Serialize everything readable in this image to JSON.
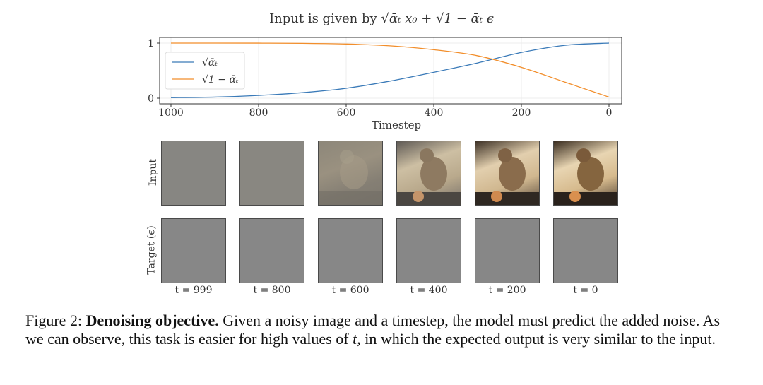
{
  "figure": {
    "chart_title_prefix": "Input is given by",
    "chart_title_formula": "√ᾱₜ x₀ + √1 − ᾱₜ ϵ",
    "row_labels": [
      "Input",
      "Target (ϵ)"
    ],
    "timestep_labels": [
      "t = 999",
      "t = 800",
      "t = 600",
      "t = 400",
      "t = 200",
      "t = 0"
    ]
  },
  "caption": {
    "label": "Figure 2:",
    "bold_title": "Denoising objective.",
    "text_before_t": "Given a noisy image and a timestep, the model must predict the added noise. As we can observe, this task is easier for high values of",
    "t_symbol": "t",
    "text_after_t": ", in which the expected output is very similar to the input."
  },
  "chart_data": {
    "type": "line",
    "title": "Input is given by √ᾱₜ x₀ + √1 − ᾱₜ ϵ",
    "xlabel": "Timestep",
    "ylabel": "",
    "xlim": [
      1000,
      0
    ],
    "ylim": [
      0,
      1
    ],
    "xticks": [
      1000,
      800,
      600,
      400,
      200,
      0
    ],
    "yticks": [
      0,
      1
    ],
    "legend_position": "top-left",
    "series": [
      {
        "name": "√ᾱₜ",
        "color": "#3a7ab8",
        "x": [
          1000,
          900,
          800,
          700,
          600,
          500,
          400,
          300,
          200,
          100,
          0
        ],
        "y": [
          0.01,
          0.02,
          0.05,
          0.1,
          0.18,
          0.31,
          0.47,
          0.64,
          0.83,
          0.96,
          1.0
        ]
      },
      {
        "name": "√1 − ᾱₜ",
        "color": "#f28e2b",
        "x": [
          1000,
          900,
          800,
          700,
          600,
          500,
          400,
          300,
          200,
          100,
          0
        ],
        "y": [
          1.0,
          1.0,
          0.999,
          0.995,
          0.983,
          0.95,
          0.88,
          0.77,
          0.56,
          0.29,
          0.02
        ]
      }
    ]
  }
}
